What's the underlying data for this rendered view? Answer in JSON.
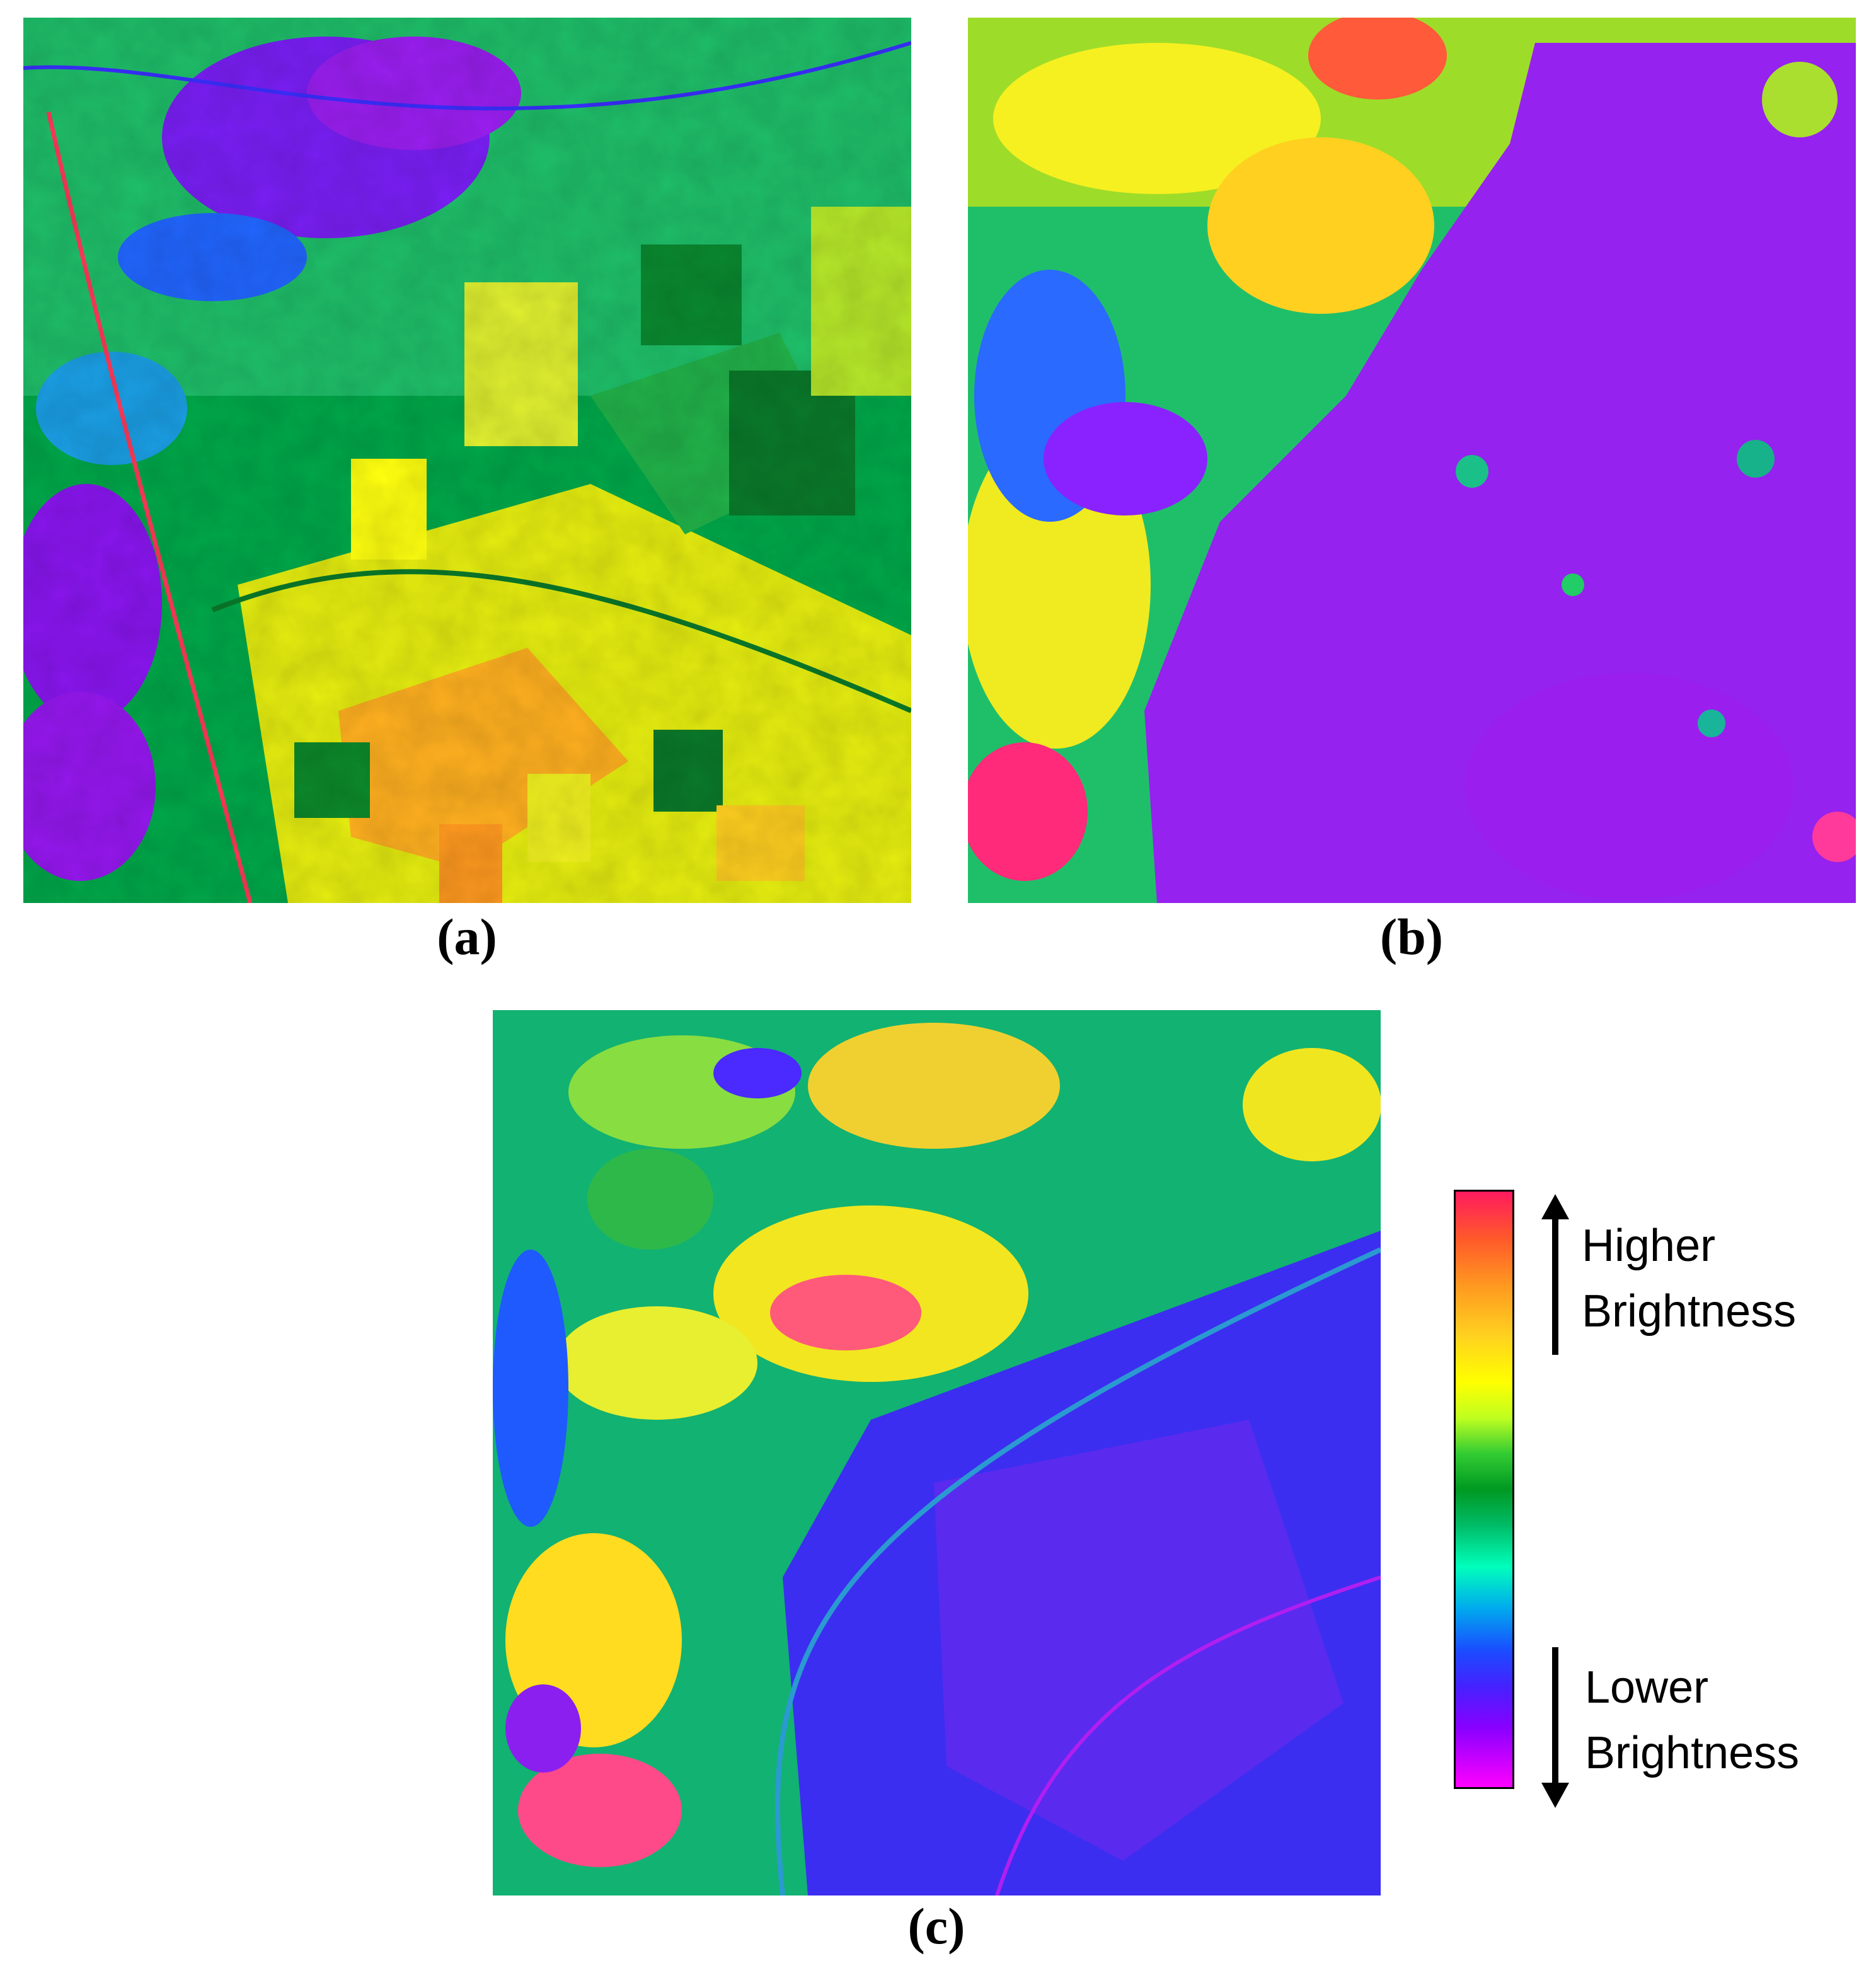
{
  "panels": [
    {
      "id": "a",
      "caption": "(a)"
    },
    {
      "id": "b",
      "caption": "(b)"
    },
    {
      "id": "c",
      "caption": "(c)"
    }
  ],
  "legend": {
    "high_label_line1": "Higher",
    "high_label_line2": "Brightness",
    "low_label_line1": "Lower",
    "low_label_line2": "Brightness",
    "gradient_colors": [
      "#ff1a5e",
      "#ff9a20",
      "#ffff00",
      "#33cc33",
      "#009922",
      "#00ffbb",
      "#1a4dff",
      "#8800ff",
      "#ff00ff"
    ]
  }
}
